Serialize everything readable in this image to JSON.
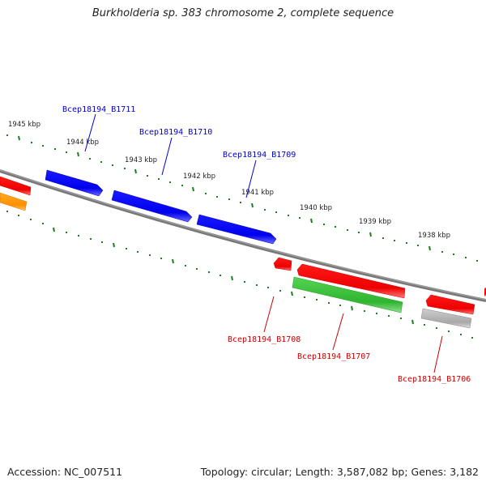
{
  "title": "Burkholderia sp. 383 chromosome 2, complete sequence",
  "footer": {
    "accession": "Accession: NC_007511",
    "topology": "Topology: circular; Length: 3,587,082 bp; Genes: 3,182"
  },
  "colors": {
    "background": "#ffffff",
    "backbone": "#808080",
    "ticks": "#1e7d1e",
    "forward_gene": "#0000ee",
    "reverse_gene_red": "#ee0000",
    "reverse_gene_green": "#33bb33",
    "reverse_gene_orange": "#ff9900",
    "reverse_gene_gray": "#aaaaaa",
    "forward_label": "#0000cc",
    "reverse_label": "#cc0000"
  },
  "scale_labels": [
    "1945 kbp",
    "1944 kbp",
    "1943 kbp",
    "1942 kbp",
    "1941 kbp",
    "1940 kbp",
    "1939 kbp",
    "1938 kbp"
  ],
  "forward_genes": [
    {
      "label": "Bcep18194_B1711",
      "color": "#0000ee"
    },
    {
      "label": "Bcep18194_B1710",
      "color": "#0000ee"
    },
    {
      "label": "Bcep18194_B1709",
      "color": "#0000ee"
    }
  ],
  "reverse_genes": [
    {
      "label": "Bcep18194_B1708",
      "color": "#ee0000"
    },
    {
      "label": "Bcep18194_B1707",
      "color": "#ee0000"
    },
    {
      "label": "Bcep18194_B1706",
      "color": "#ee0000"
    }
  ],
  "unlabeled_genes": [
    {
      "strand": "forward",
      "color": "#ee0000"
    },
    {
      "strand": "reverse",
      "color": "#ff9900"
    },
    {
      "strand": "reverse",
      "color": "#33bb33"
    },
    {
      "strand": "reverse",
      "color": "#aaaaaa"
    }
  ]
}
